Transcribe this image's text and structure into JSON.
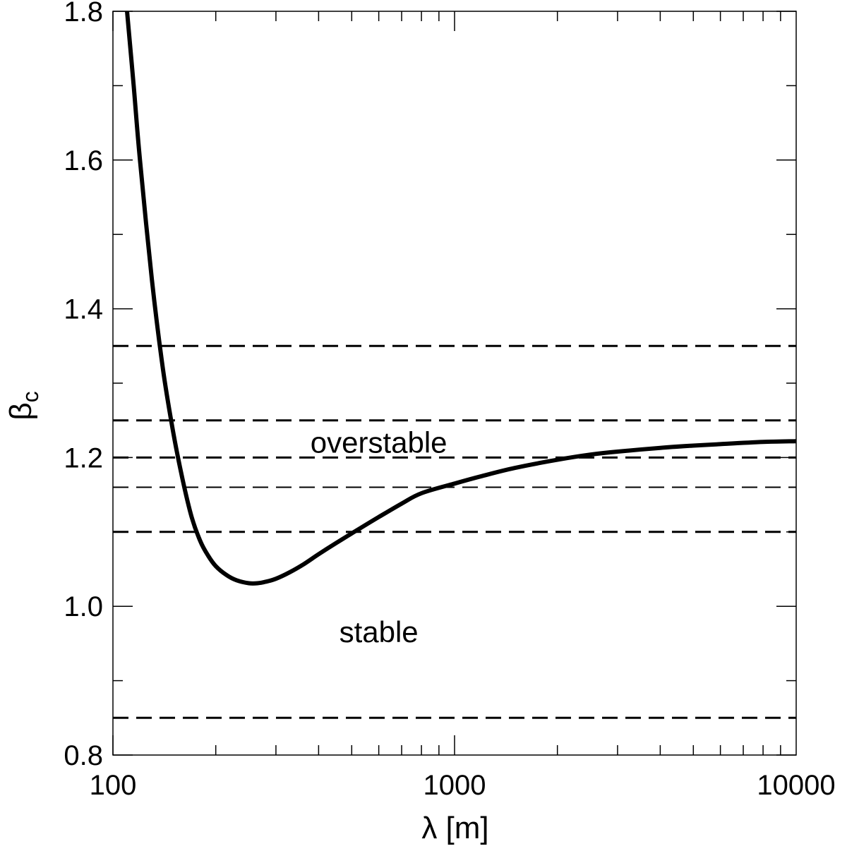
{
  "chart_data": {
    "type": "line",
    "title": "",
    "xlabel": "λ [m]",
    "ylabel": "β",
    "ylabel_subscript": "c",
    "x_scale": "log",
    "xlim": [
      100,
      10000
    ],
    "ylim": [
      0.8,
      1.8
    ],
    "grid": false,
    "x_tick_labels": [
      "100",
      "1000",
      "10000"
    ],
    "x_tick_values": [
      100,
      1000,
      10000
    ],
    "y_tick_labels": [
      "0.8",
      "1.0",
      "1.2",
      "1.4",
      "1.6",
      "1.8"
    ],
    "y_tick_values": [
      0.8,
      1.0,
      1.2,
      1.4,
      1.6,
      1.8
    ],
    "series": [
      {
        "style": "solid",
        "x": [
          110,
          115,
          120,
          130,
          140,
          150,
          160,
          170,
          180,
          190,
          200,
          215,
          230,
          250,
          265,
          280,
          300,
          330,
          360,
          400,
          450,
          500,
          600,
          700,
          800,
          1000,
          1200,
          1500,
          2000,
          2500,
          3000,
          4000,
          5000,
          6000,
          8000,
          10000
        ],
        "y": [
          1.8,
          1.7,
          1.6,
          1.44,
          1.32,
          1.235,
          1.17,
          1.12,
          1.088,
          1.068,
          1.054,
          1.042,
          1.035,
          1.031,
          1.031,
          1.033,
          1.037,
          1.046,
          1.056,
          1.07,
          1.085,
          1.098,
          1.12,
          1.138,
          1.152,
          1.165,
          1.175,
          1.186,
          1.197,
          1.204,
          1.208,
          1.213,
          1.216,
          1.218,
          1.221,
          1.222
        ]
      }
    ],
    "reference_lines": [
      {
        "y": 1.35,
        "style": "dashed"
      },
      {
        "y": 1.25,
        "style": "dashed"
      },
      {
        "y": 1.2,
        "style": "dashed"
      },
      {
        "y": 1.16,
        "style": "dashed-thin"
      },
      {
        "y": 1.1,
        "style": "dashed"
      },
      {
        "y": 0.85,
        "style": "dashed"
      }
    ],
    "annotations": [
      {
        "text": "overstable",
        "x": 600,
        "y": 1.22
      },
      {
        "text": "stable",
        "x": 600,
        "y": 0.965
      }
    ],
    "colors": {
      "line": "#000000",
      "axes": "#000000"
    }
  }
}
